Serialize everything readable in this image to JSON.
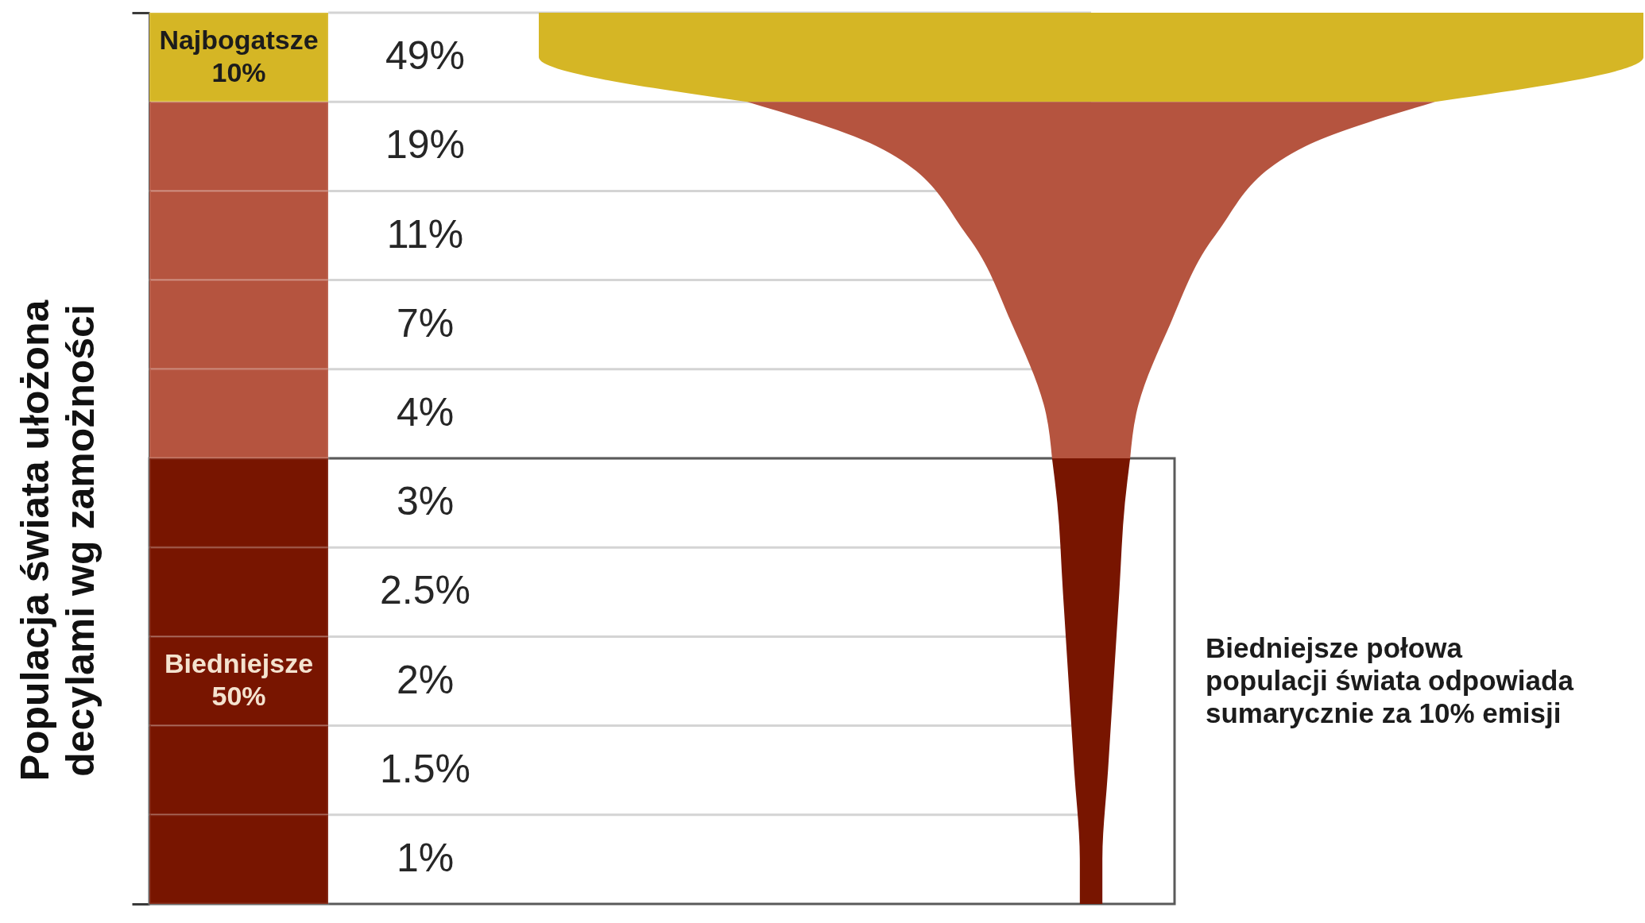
{
  "chart_data": {
    "type": "other",
    "ylabel": "Populacja świata ułożona\ndecylami wg zamożności",
    "categories": [
      null,
      null,
      null,
      null,
      null,
      null,
      null,
      null,
      null,
      null
    ],
    "values": [
      49,
      19,
      11,
      7,
      4,
      3,
      2.5,
      2,
      1.5,
      1
    ],
    "value_labels": [
      "49%",
      "19%",
      "11%",
      "7%",
      "4%",
      "3%",
      "2.5%",
      "2%",
      "1.5%",
      "1%"
    ],
    "colors": [
      "#d5b625",
      "#b5543f",
      "#b5543f",
      "#b5543f",
      "#b5543f",
      "#781500",
      "#781500",
      "#781500",
      "#781500",
      "#781500"
    ],
    "annotations": [
      "Najbogatsze\n10%",
      "Biedniejsze\n50%",
      "Biedniejsze połowa\npopulacji świata odpowiada\nsumarycznie za 10% emisji"
    ]
  }
}
